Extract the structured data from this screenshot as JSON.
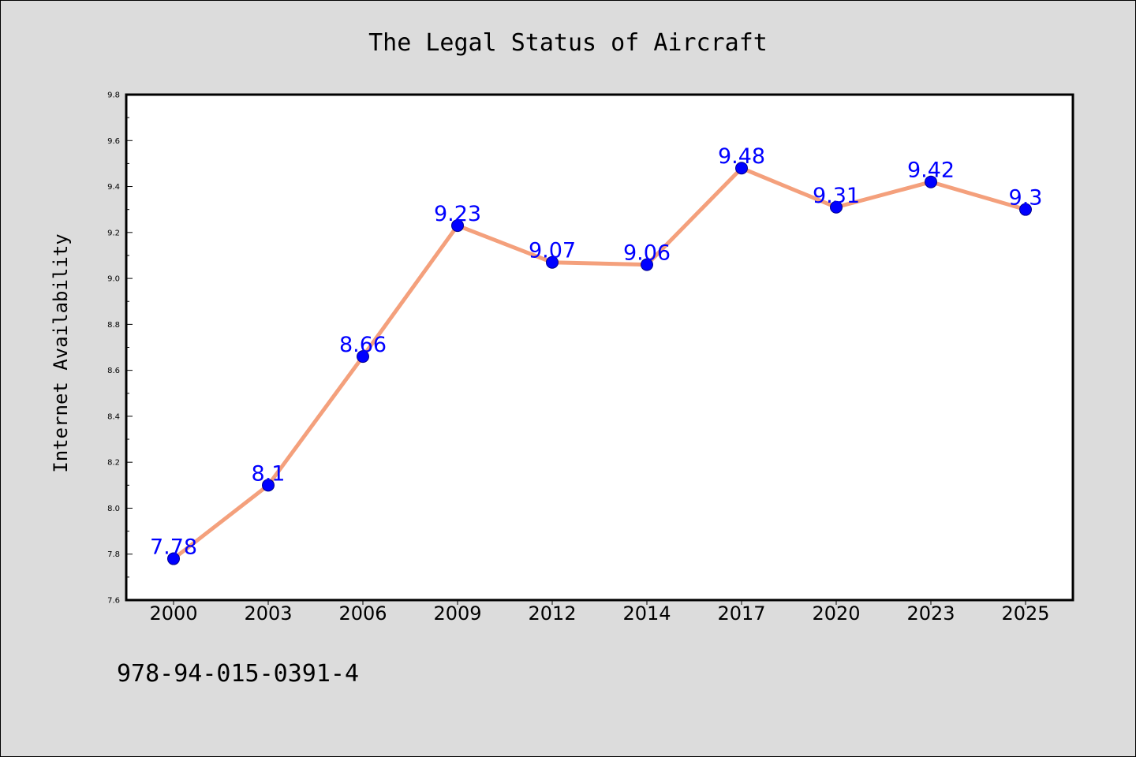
{
  "chart_data": {
    "type": "line",
    "title": "The Legal Status of Aircraft",
    "xlabel": "",
    "ylabel": "Internet Availability",
    "categories": [
      "2000",
      "2003",
      "2006",
      "2009",
      "2012",
      "2014",
      "2017",
      "2020",
      "2023",
      "2025"
    ],
    "series": [
      {
        "values": [
          7.78,
          8.1,
          8.66,
          9.23,
          9.07,
          9.06,
          9.48,
          9.31,
          9.42,
          9.3
        ],
        "labels": [
          "7.78",
          "8.1",
          "8.66",
          "9.23",
          "9.07",
          "9.06",
          "9.48",
          "9.31",
          "9.42",
          "9.3"
        ],
        "line_color": "#f4a07c",
        "marker_color": "#0000ff",
        "label_color": "#0000ff"
      }
    ],
    "ylim": [
      7.6,
      9.8
    ],
    "yticks": [
      "7.6",
      "7.8",
      "8.0",
      "8.2",
      "8.4",
      "8.6",
      "8.8",
      "9.0",
      "9.2",
      "9.4",
      "9.6",
      "9.8"
    ],
    "grid": false,
    "background": "#dcdcdc",
    "plot_background": "#ffffff"
  },
  "footnote": "978-94-015-0391-4"
}
